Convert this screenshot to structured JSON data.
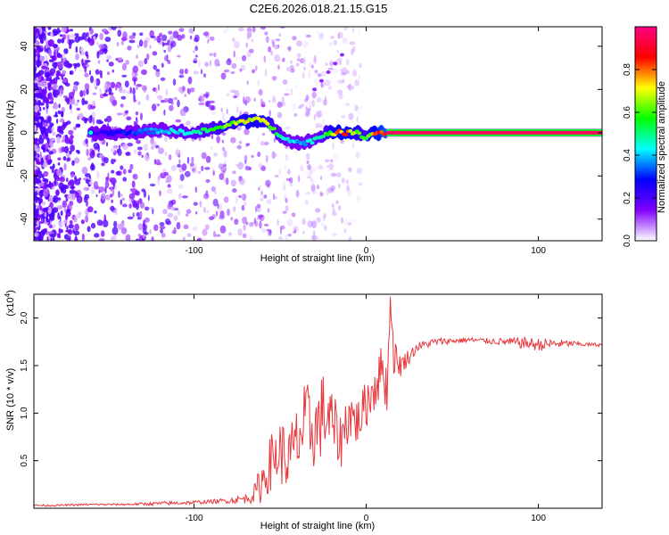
{
  "figure": {
    "title": "C2E6.2026.018.21.15.G15"
  },
  "chart_data": [
    {
      "type": "heatmap",
      "name": "spectrogram",
      "xlabel": "Height of straight line (km)",
      "ylabel": "Frequency (Hz)",
      "xlim": [
        -193,
        137
      ],
      "ylim": [
        -50,
        49
      ],
      "xticks": [
        -100,
        0,
        100
      ],
      "xtick_labels": [
        "-100",
        "0",
        "100"
      ],
      "yticks": [
        -40,
        -20,
        0,
        20,
        40
      ],
      "ytick_labels": [
        "-40",
        "-20",
        "0",
        "20",
        "40"
      ],
      "colorbar": {
        "label": "Normalized spectral amplitude",
        "range": [
          0,
          1
        ],
        "ticks": [
          0.0,
          0.2,
          0.4,
          0.6,
          0.8
        ],
        "tick_labels": [
          "0.0",
          "0.2",
          "0.4",
          "0.6",
          "0.8"
        ],
        "colormap": [
          "#ffffff",
          "#8000ff",
          "#0000ff",
          "#00ffff",
          "#00ff00",
          "#ffff00",
          "#ff0000",
          "#ff0080"
        ]
      },
      "ridge": {
        "x": [
          -193,
          -160,
          -140,
          -120,
          -100,
          -85,
          -75,
          -65,
          -58,
          -52,
          -45,
          -38,
          -32,
          -27,
          -22,
          -18,
          -12,
          -6,
          0,
          5,
          10,
          20,
          50,
          100,
          137
        ],
        "y": [
          0,
          0,
          0,
          1,
          0,
          2,
          5,
          6,
          5,
          0,
          -3,
          -5,
          -4,
          -2,
          0,
          0,
          0,
          0,
          -2,
          0,
          0,
          0,
          0,
          0,
          0
        ],
        "amplitude": [
          0.2,
          0.2,
          0.3,
          0.4,
          0.5,
          0.6,
          0.7,
          0.75,
          0.7,
          0.55,
          0.45,
          0.4,
          0.45,
          0.5,
          0.6,
          0.8,
          0.85,
          0.7,
          0.6,
          0.8,
          0.95,
          0.97,
          0.97,
          0.97,
          0.97
        ]
      }
    },
    {
      "type": "line",
      "name": "snr",
      "xlabel": "Height of straight line (km)",
      "ylabel": "SNR (10 * v/v)",
      "y_multiplier_label": "(x10",
      "y_multiplier_exponent": "4",
      "xlim": [
        -193,
        137
      ],
      "ylim": [
        0,
        2.25
      ],
      "xticks": [
        -100,
        0,
        100
      ],
      "xtick_labels": [
        "-100",
        "0",
        "100"
      ],
      "yticks": [
        0.5,
        1.0,
        1.5,
        2.0
      ],
      "ytick_labels": [
        "0.5",
        "1.0",
        "1.5",
        "2.0"
      ],
      "color": "#e8373d",
      "series": [
        {
          "name": "SNR",
          "x": [
            -193,
            -180,
            -160,
            -140,
            -120,
            -100,
            -90,
            -80,
            -70,
            -65,
            -60,
            -55,
            -50,
            -45,
            -40,
            -35,
            -30,
            -25,
            -20,
            -15,
            -10,
            -5,
            0,
            5,
            10,
            12,
            14,
            16,
            20,
            25,
            30,
            40,
            50,
            60,
            70,
            80,
            90,
            100,
            110,
            120,
            130,
            137
          ],
          "y": [
            0.03,
            0.03,
            0.04,
            0.04,
            0.05,
            0.06,
            0.07,
            0.08,
            0.1,
            0.15,
            0.3,
            0.5,
            0.6,
            0.5,
            0.7,
            0.9,
            0.8,
            1.0,
            0.9,
            0.7,
            1.0,
            0.9,
            1.1,
            1.3,
            1.5,
            1.2,
            2.2,
            1.6,
            1.5,
            1.6,
            1.7,
            1.75,
            1.76,
            1.77,
            1.76,
            1.75,
            1.74,
            1.72,
            1.73,
            1.73,
            1.72,
            1.72
          ],
          "noise": [
            0.01,
            0.01,
            0.01,
            0.01,
            0.02,
            0.02,
            0.02,
            0.03,
            0.05,
            0.1,
            0.25,
            0.3,
            0.35,
            0.35,
            0.4,
            0.45,
            0.4,
            0.45,
            0.35,
            0.3,
            0.3,
            0.25,
            0.25,
            0.3,
            0.25,
            0.3,
            0.05,
            0.2,
            0.12,
            0.08,
            0.05,
            0.04,
            0.03,
            0.03,
            0.03,
            0.04,
            0.06,
            0.07,
            0.05,
            0.03,
            0.02,
            0.02
          ]
        }
      ]
    }
  ]
}
